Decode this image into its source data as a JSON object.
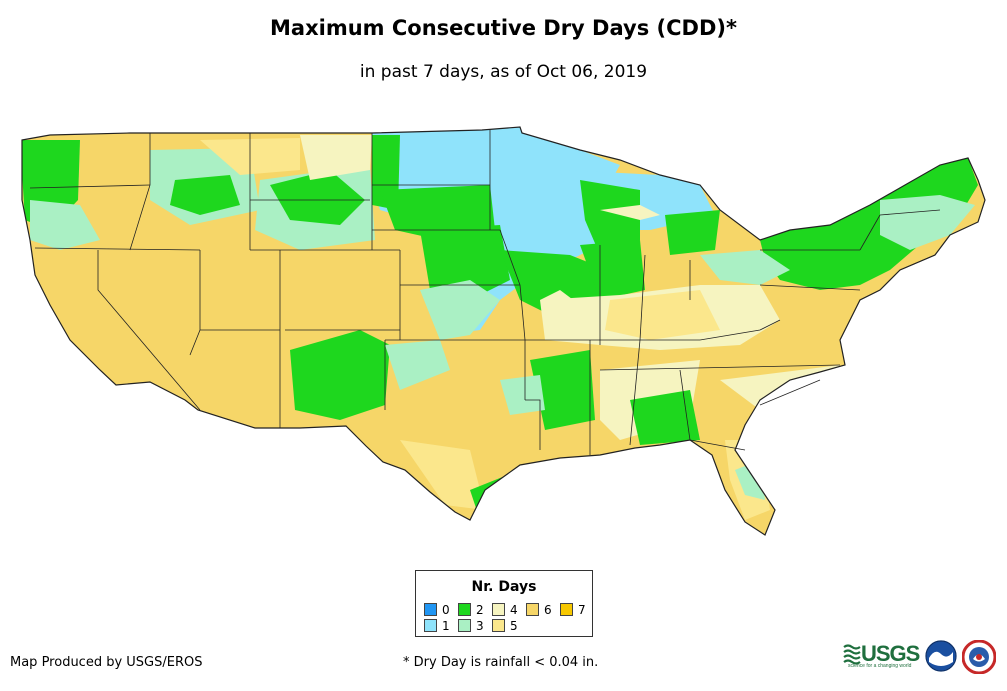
{
  "title": "Maximum Consecutive Dry Days (CDD)*",
  "subtitle": "in past 7 days, as of Oct 06, 2019",
  "legend": {
    "title": "Nr. Days",
    "items": [
      {
        "label": "0",
        "color": "#2196f3"
      },
      {
        "label": "1",
        "color": "#8fe3fb"
      },
      {
        "label": "2",
        "color": "#1ed71e"
      },
      {
        "label": "3",
        "color": "#aaf0c4"
      },
      {
        "label": "4",
        "color": "#f6f4c0"
      },
      {
        "label": "5",
        "color": "#fbe78c"
      },
      {
        "label": "6",
        "color": "#f6d668"
      },
      {
        "label": "7",
        "color": "#f7c800"
      }
    ]
  },
  "footer": {
    "credit": "Map Produced by USGS/EROS",
    "note": "* Dry Day is rainfall < 0.04 in."
  },
  "logos": {
    "usgs_text": "USGS",
    "usgs_tagline": "science for a changing world"
  }
}
